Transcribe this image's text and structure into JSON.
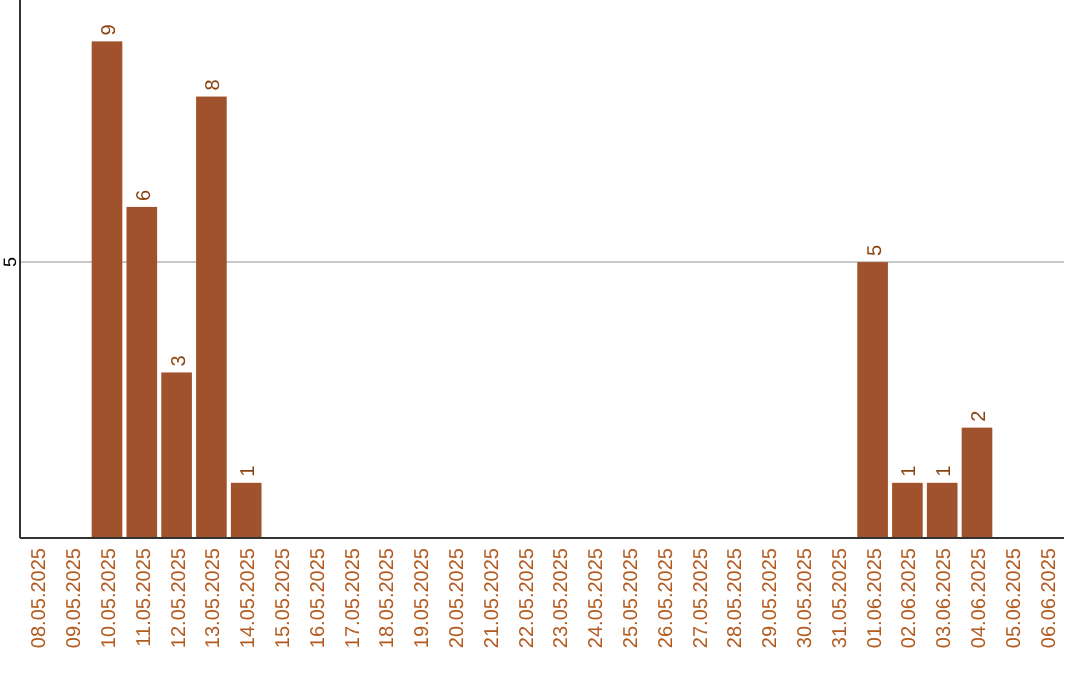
{
  "chart_data": {
    "type": "bar",
    "categories": [
      "08.05.2025",
      "09.05.2025",
      "10.05.2025",
      "11.05.2025",
      "12.05.2025",
      "13.05.2025",
      "14.05.2025",
      "15.05.2025",
      "16.05.2025",
      "17.05.2025",
      "18.05.2025",
      "19.05.2025",
      "20.05.2025",
      "21.05.2025",
      "22.05.2025",
      "23.05.2025",
      "24.05.2025",
      "25.05.2025",
      "26.05.2025",
      "27.05.2025",
      "28.05.2025",
      "29.05.2025",
      "30.05.2025",
      "31.05.2025",
      "01.06.2025",
      "02.06.2025",
      "03.06.2025",
      "04.06.2025",
      "05.06.2025",
      "06.06.2025"
    ],
    "values": [
      0,
      0,
      9,
      6,
      3,
      8,
      1,
      0,
      0,
      0,
      0,
      0,
      0,
      0,
      0,
      0,
      0,
      0,
      0,
      0,
      0,
      0,
      0,
      0,
      5,
      1,
      1,
      2,
      0,
      0
    ],
    "value_labels": [
      null,
      null,
      "9",
      "6",
      "3",
      "8",
      "1",
      null,
      null,
      null,
      null,
      null,
      null,
      null,
      null,
      null,
      null,
      null,
      null,
      null,
      null,
      null,
      null,
      null,
      "5",
      "1",
      "1",
      "2",
      null,
      null
    ],
    "color": "#a0522d",
    "ylim": [
      0,
      9.75
    ],
    "yticks": [
      5
    ],
    "grid": "y"
  }
}
